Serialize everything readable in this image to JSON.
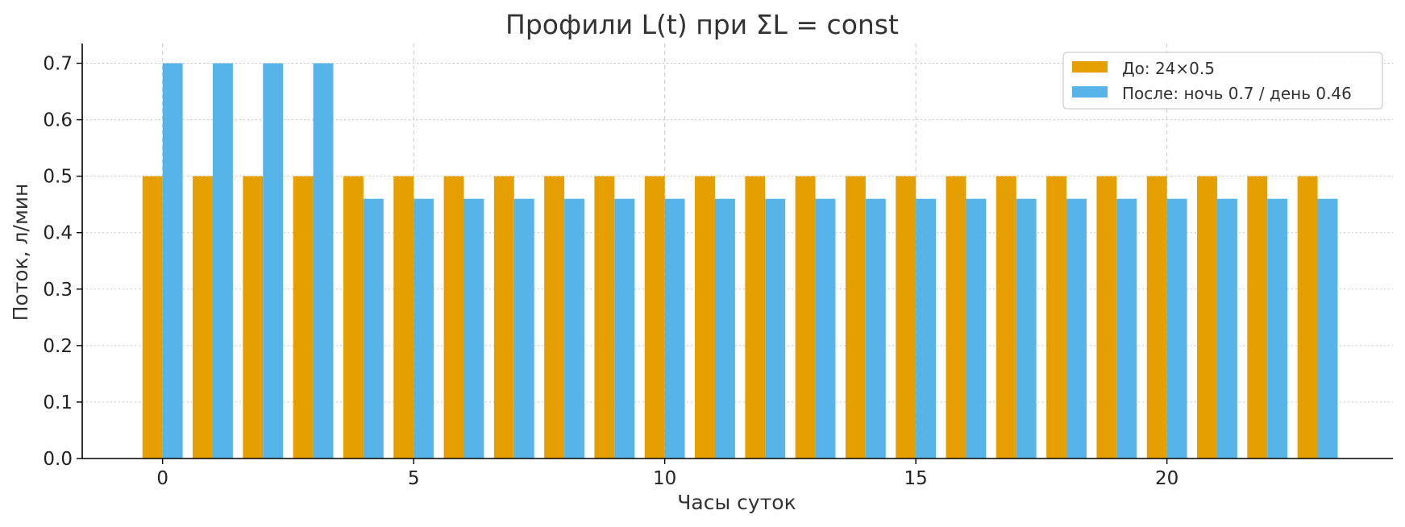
{
  "chart_data": {
    "type": "bar",
    "title": "Профили L(t) при ΣL = const",
    "xlabel": "Часы суток",
    "ylabel": "Поток, л/мин",
    "x": [
      0,
      1,
      2,
      3,
      4,
      5,
      6,
      7,
      8,
      9,
      10,
      11,
      12,
      13,
      14,
      15,
      16,
      17,
      18,
      19,
      20,
      21,
      22,
      23
    ],
    "xticks": [
      0,
      5,
      10,
      15,
      20
    ],
    "yticks": [
      0.0,
      0.1,
      0.2,
      0.3,
      0.4,
      0.5,
      0.6,
      0.7
    ],
    "ylim": [
      0,
      0.735
    ],
    "xlim": [
      -1.6,
      24.5
    ],
    "grid": true,
    "legend_position": "top-right",
    "series": [
      {
        "name": "До: 24×0.5",
        "color": "#E69F00",
        "values": [
          0.5,
          0.5,
          0.5,
          0.5,
          0.5,
          0.5,
          0.5,
          0.5,
          0.5,
          0.5,
          0.5,
          0.5,
          0.5,
          0.5,
          0.5,
          0.5,
          0.5,
          0.5,
          0.5,
          0.5,
          0.5,
          0.5,
          0.5,
          0.5
        ]
      },
      {
        "name": "После: ночь 0.7 / день 0.46",
        "color": "#56B4E9",
        "values": [
          0.7,
          0.7,
          0.7,
          0.7,
          0.46,
          0.46,
          0.46,
          0.46,
          0.46,
          0.46,
          0.46,
          0.46,
          0.46,
          0.46,
          0.46,
          0.46,
          0.46,
          0.46,
          0.46,
          0.46,
          0.46,
          0.46,
          0.46,
          0.46
        ]
      }
    ]
  }
}
